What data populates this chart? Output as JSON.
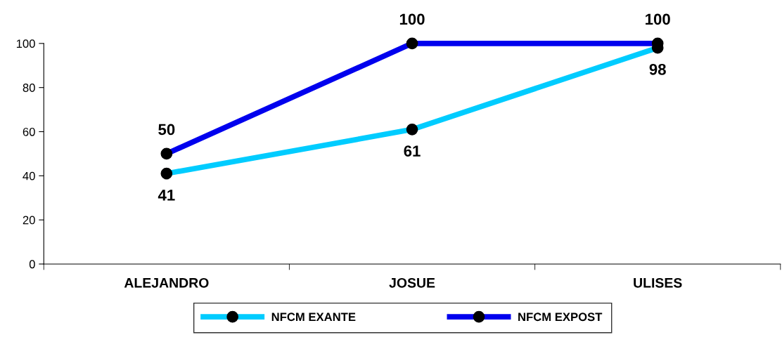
{
  "chart_data": {
    "type": "line",
    "categories": [
      "ALEJANDRO",
      "JOSUE",
      "ULISES"
    ],
    "series": [
      {
        "name": "NFCM EXANTE",
        "color": "#00ccff",
        "values": [
          41,
          61,
          98
        ]
      },
      {
        "name": "NFCM EXPOST",
        "color": "#0000ee",
        "values": [
          50,
          100,
          100
        ]
      }
    ],
    "ylim": [
      0,
      100
    ],
    "yticks": [
      0,
      20,
      40,
      60,
      80,
      100
    ],
    "grid": false,
    "legend": "bottom",
    "marker": "circle",
    "line_style": "solid",
    "data_labels": true
  }
}
